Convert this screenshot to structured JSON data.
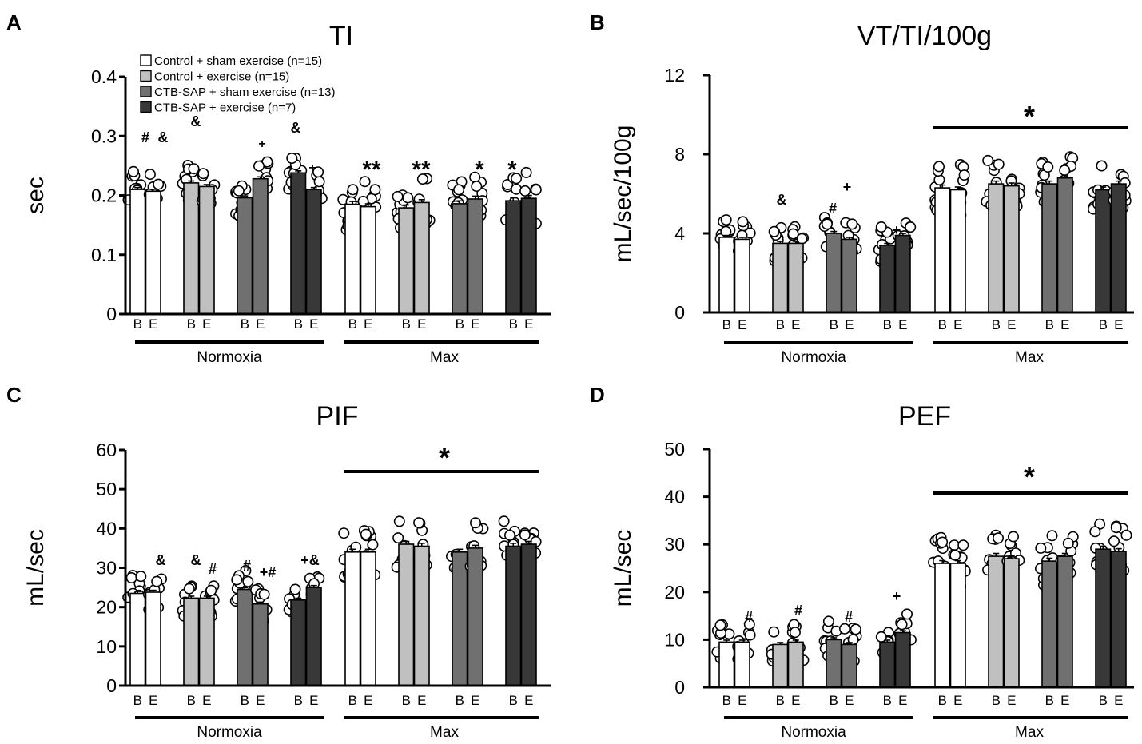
{
  "legend": [
    {
      "label": "Control + sham exercise (n=15)",
      "color": "#ffffff"
    },
    {
      "label": "Control + exercise (n=15)",
      "color": "#c0c0c0"
    },
    {
      "label": "CTB-SAP + sham exercise (n=13)",
      "color": "#707070"
    },
    {
      "label": "CTB-SAP + exercise (n=7)",
      "color": "#383838"
    }
  ],
  "bar_labels": [
    "B",
    "E"
  ],
  "group_labels": [
    "Normoxia",
    "Max"
  ],
  "chart_data": [
    {
      "panel": "A",
      "type": "bar",
      "title": "TI",
      "ylabel": "sec",
      "ylim": [
        0,
        0.4
      ],
      "yticks": [
        "0",
        "0.1",
        "0.2",
        "0.3",
        "0.4"
      ],
      "conditions": [
        "Normoxia",
        "Max"
      ],
      "series": [
        {
          "name": "Control + sham exercise (n=15)",
          "B": [
            0.21,
            0.185
          ],
          "E": [
            0.207,
            0.181
          ]
        },
        {
          "name": "Control + exercise (n=15)",
          "B": [
            0.221,
            0.179
          ],
          "E": [
            0.215,
            0.188
          ]
        },
        {
          "name": "CTB-SAP + sham exercise (n=13)",
          "B": [
            0.196,
            0.186
          ],
          "E": [
            0.228,
            0.194
          ]
        },
        {
          "name": "CTB-SAP + exercise (n=7)",
          "B": [
            0.238,
            0.191
          ],
          "E": [
            0.21,
            0.195
          ]
        }
      ],
      "annotations": [
        "#",
        "&",
        "&",
        "+",
        "&",
        "+",
        "**",
        "**",
        "*",
        "*"
      ]
    },
    {
      "panel": "B",
      "type": "bar",
      "title": "VT/TI/100g",
      "ylabel": "mL/sec/100g",
      "ylim": [
        0,
        12
      ],
      "yticks": [
        "0",
        "4",
        "8",
        "12"
      ],
      "conditions": [
        "Normoxia",
        "Max"
      ],
      "series": [
        {
          "name": "Control + sham exercise (n=15)",
          "B": [
            3.8,
            6.3
          ],
          "E": [
            3.7,
            6.2
          ]
        },
        {
          "name": "Control + exercise (n=15)",
          "B": [
            3.5,
            6.5
          ],
          "E": [
            3.5,
            6.4
          ]
        },
        {
          "name": "CTB-SAP + sham exercise (n=13)",
          "B": [
            4.0,
            6.5
          ],
          "E": [
            3.7,
            6.8
          ]
        },
        {
          "name": "CTB-SAP + exercise (n=7)",
          "B": [
            3.4,
            6.2
          ],
          "E": [
            3.9,
            6.5
          ]
        }
      ],
      "annotations": [
        "&",
        "#",
        "+",
        "+",
        "*"
      ]
    },
    {
      "panel": "C",
      "type": "bar",
      "title": "PIF",
      "ylabel": "mL/sec",
      "ylim": [
        0,
        60
      ],
      "yticks": [
        "0",
        "10",
        "20",
        "30",
        "40",
        "50",
        "60"
      ],
      "conditions": [
        "Normoxia",
        "Max"
      ],
      "series": [
        {
          "name": "Control + sham exercise (n=15)",
          "B": [
            23.5,
            34
          ],
          "E": [
            23.8,
            34
          ]
        },
        {
          "name": "Control + exercise (n=15)",
          "B": [
            22.3,
            36
          ],
          "E": [
            22.3,
            35.5
          ]
        },
        {
          "name": "CTB-SAP + sham exercise (n=13)",
          "B": [
            24.5,
            34
          ],
          "E": [
            20.8,
            35
          ]
        },
        {
          "name": "CTB-SAP + exercise (n=7)",
          "B": [
            21.8,
            35.5
          ],
          "E": [
            25,
            36
          ]
        }
      ],
      "annotations": [
        "&",
        "&",
        "#",
        "#",
        "+#",
        "+&",
        "*"
      ]
    },
    {
      "panel": "D",
      "type": "bar",
      "title": "PEF",
      "ylabel": "mL/sec",
      "ylim": [
        0,
        50
      ],
      "yticks": [
        "0",
        "10",
        "20",
        "30",
        "40",
        "50"
      ],
      "conditions": [
        "Normoxia",
        "Max"
      ],
      "series": [
        {
          "name": "Control + sham exercise (n=15)",
          "B": [
            9.5,
            26
          ],
          "E": [
            9.5,
            26
          ]
        },
        {
          "name": "Control + exercise (n=15)",
          "B": [
            9,
            27.5
          ],
          "E": [
            9.5,
            27
          ]
        },
        {
          "name": "CTB-SAP + sham exercise (n=13)",
          "B": [
            10,
            26.5
          ],
          "E": [
            9,
            27.5
          ]
        },
        {
          "name": "CTB-SAP + exercise (n=7)",
          "B": [
            9.5,
            29
          ],
          "E": [
            11.5,
            28.5
          ]
        }
      ],
      "annotations": [
        "#",
        "#",
        "#",
        "+",
        "*"
      ]
    }
  ]
}
